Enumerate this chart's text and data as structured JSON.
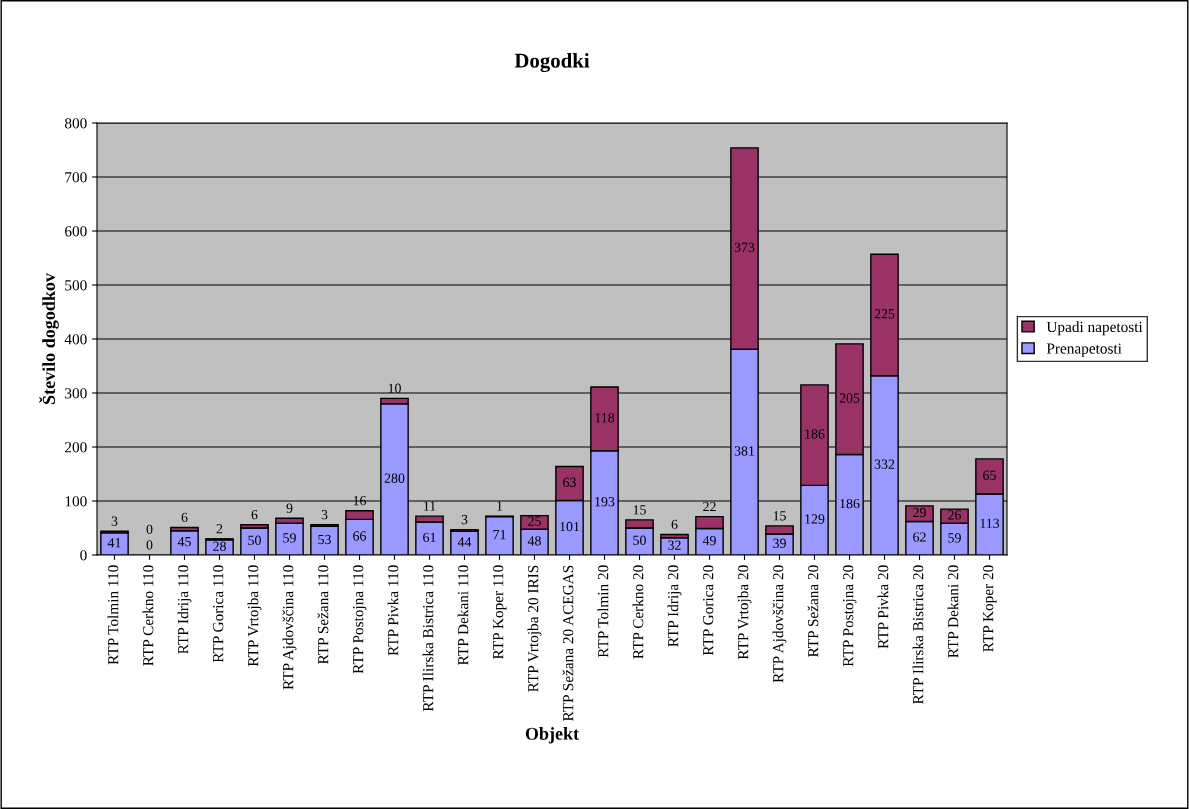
{
  "chart_data": {
    "type": "bar",
    "title": "Dogodki",
    "xlabel": "Objekt",
    "ylabel": "Število dogodkov",
    "categories": [
      "RTP Tolmin 110",
      "RTP Cerkno 110",
      "RTP Idrija 110",
      "RTP Gorica 110",
      "RTP Vrtojba 110",
      "RTP Ajdovščina 110",
      "RTP Sežana 110",
      "RTP Postojna 110",
      "RTP Pivka 110",
      "RTP Ilirska Bistrica 110",
      "RTP Dekani 110",
      "RTP Koper 110",
      "RTP Vrtojba 20 IRIS",
      "RTP Sežana 20 ACEGAS",
      "RTP Tolmin 20",
      "RTP Cerkno 20",
      "RTP Idrija 20",
      "RTP Gorica 20",
      "RTP Vrtojba 20",
      "RTP Ajdovščina 20",
      "RTP Sežana 20",
      "RTP Postojna 20",
      "RTP Pivka 20",
      "RTP Ilirska Bistrica 20",
      "RTP Dekani 20",
      "RTP Koper 20"
    ],
    "stacked": true,
    "series": [
      {
        "name": "Prenapetosti",
        "color": "#9999ff",
        "values": [
          41,
          0,
          45,
          28,
          50,
          59,
          53,
          66,
          280,
          61,
          44,
          71,
          48,
          101,
          193,
          50,
          32,
          49,
          381,
          39,
          129,
          186,
          332,
          62,
          59,
          113
        ]
      },
      {
        "name": "Upadi napetosti",
        "color": "#993366",
        "values": [
          3,
          0,
          6,
          2,
          6,
          9,
          3,
          16,
          10,
          11,
          3,
          1,
          25,
          63,
          118,
          15,
          6,
          22,
          373,
          15,
          186,
          205,
          225,
          29,
          26,
          65
        ]
      }
    ],
    "ylim": [
      0,
      800
    ],
    "yticks": [
      0,
      100,
      200,
      300,
      400,
      500,
      600,
      700,
      800
    ],
    "grid": "y",
    "legend": "right",
    "data_labels": true
  }
}
